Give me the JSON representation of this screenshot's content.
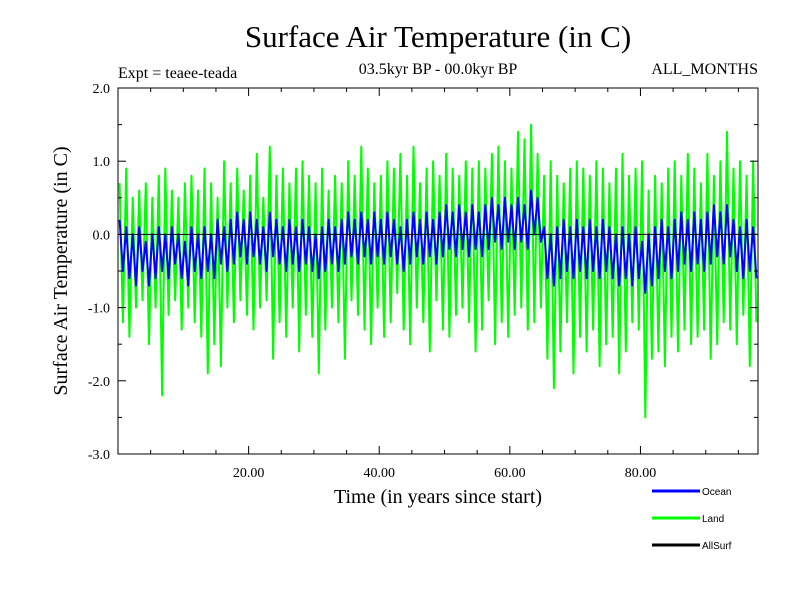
{
  "chart_data": {
    "type": "line",
    "title": "Surface Air Temperature (in C)",
    "subtitle_left": "Expt = teaee-teada",
    "subtitle_center": "03.5kyr BP - 00.0kyr BP",
    "subtitle_right": "ALL_MONTHS",
    "xlabel": "Time (in years since start)",
    "ylabel": "Surface Air Temperature (in C)",
    "xlim": [
      0,
      98
    ],
    "ylim": [
      -3.0,
      2.0
    ],
    "x_ticks": [
      20,
      40,
      60,
      80
    ],
    "x_tick_labels": [
      "20.00",
      "40.00",
      "60.00",
      "80.00"
    ],
    "y_ticks": [
      -3,
      -2,
      -1,
      0,
      1,
      2
    ],
    "y_tick_labels": [
      "-3.0",
      "-2.0",
      "-1.0",
      "0.0",
      "1.0",
      "2.0"
    ],
    "zero_line": true,
    "legend_position": "bottom-right",
    "series": [
      {
        "name": "Land",
        "color": "#00ff00",
        "x": [
          0.5,
          1.5,
          2.5,
          3.5,
          4.5,
          5.5,
          6.5,
          7.5,
          8.5,
          9.5,
          10.5,
          11.5,
          12.5,
          13.5,
          14.5,
          15.5,
          16.5,
          17.5,
          18.5,
          19.5,
          20.5,
          21.5,
          22.5,
          23.5,
          24.5,
          25.5,
          26.5,
          27.5,
          28.5,
          29.5,
          30.5,
          31.5,
          32.5,
          33.5,
          34.5,
          35.5,
          36.5,
          37.5,
          38.5,
          39.5,
          40.5,
          41.5,
          42.5,
          43.5,
          44.5,
          45.5,
          46.5,
          47.5,
          48.5,
          49.5,
          50.5,
          51.5,
          52.5,
          53.5,
          54.5,
          55.5,
          56.5,
          57.5,
          58.5,
          59.5,
          60.5,
          61.5,
          62.5,
          63.5,
          64.5,
          65.5,
          66.5,
          67.5,
          68.5,
          69.5,
          70.5,
          71.5,
          72.5,
          73.5,
          74.5,
          75.5,
          76.5,
          77.5,
          78.5,
          79.5,
          80.5,
          81.5,
          82.5,
          83.5,
          84.5,
          85.5,
          86.5,
          87.5,
          88.5,
          89.5,
          90.5,
          91.5,
          92.5,
          93.5,
          94.5,
          95.5,
          96.5,
          97.5
        ],
        "max": [
          0.7,
          0.9,
          0.5,
          0.6,
          0.7,
          0.5,
          0.8,
          0.9,
          0.6,
          0.5,
          0.7,
          0.8,
          0.6,
          0.9,
          0.7,
          0.5,
          1.0,
          0.7,
          0.9,
          0.6,
          0.8,
          1.1,
          0.5,
          1.2,
          0.8,
          0.9,
          0.7,
          0.9,
          1.0,
          0.8,
          0.7,
          0.9,
          0.6,
          0.8,
          0.7,
          1.0,
          0.8,
          1.2,
          0.9,
          0.7,
          0.8,
          1.0,
          0.9,
          1.1,
          0.8,
          1.2,
          0.7,
          0.9,
          1.0,
          0.8,
          1.1,
          0.9,
          0.8,
          1.0,
          0.9,
          1.0,
          0.9,
          1.1,
          1.2,
          1.0,
          0.9,
          1.4,
          1.3,
          1.5,
          1.1,
          0.8,
          1.0,
          0.8,
          0.7,
          0.9,
          1.0,
          0.9,
          0.8,
          1.0,
          0.9,
          0.7,
          0.9,
          1.1,
          0.8,
          0.9,
          1.0,
          0.6,
          0.8,
          0.7,
          0.9,
          1.0,
          0.8,
          1.1,
          0.9,
          0.7,
          1.1,
          0.8,
          1.0,
          1.4,
          0.9,
          1.0,
          0.8,
          1.0
        ],
        "min": [
          -1.2,
          -1.4,
          -1.0,
          -0.9,
          -1.5,
          -1.0,
          -2.2,
          -1.1,
          -0.9,
          -1.3,
          -1.0,
          -1.2,
          -1.4,
          -1.9,
          -1.5,
          -1.8,
          -1.0,
          -1.2,
          -0.9,
          -1.1,
          -1.3,
          -1.0,
          -0.9,
          -1.7,
          -1.2,
          -1.4,
          -1.0,
          -1.6,
          -1.1,
          -1.4,
          -1.9,
          -1.3,
          -1.0,
          -1.2,
          -1.7,
          -0.9,
          -1.1,
          -1.3,
          -1.5,
          -1.0,
          -1.4,
          -1.2,
          -0.8,
          -1.3,
          -1.5,
          -1.0,
          -1.2,
          -1.6,
          -0.9,
          -1.3,
          -1.4,
          -1.1,
          -1.0,
          -1.2,
          -1.6,
          -1.3,
          -0.9,
          -1.5,
          -1.2,
          -1.4,
          -1.1,
          -1.0,
          -1.3,
          -1.2,
          -1.0,
          -1.7,
          -2.1,
          -1.6,
          -1.2,
          -1.9,
          -1.4,
          -1.6,
          -1.3,
          -1.8,
          -1.5,
          -1.4,
          -1.9,
          -1.6,
          -1.2,
          -1.3,
          -2.5,
          -1.7,
          -1.6,
          -1.8,
          -1.4,
          -1.6,
          -1.3,
          -1.5,
          -1.4,
          -1.3,
          -1.7,
          -1.5,
          -1.2,
          -1.3,
          -1.5,
          -1.1,
          -1.8,
          -1.2
        ]
      },
      {
        "name": "Ocean",
        "color": "#0000ff",
        "x": [
          0.5,
          1.5,
          2.5,
          3.5,
          4.5,
          5.5,
          6.5,
          7.5,
          8.5,
          9.5,
          10.5,
          11.5,
          12.5,
          13.5,
          14.5,
          15.5,
          16.5,
          17.5,
          18.5,
          19.5,
          20.5,
          21.5,
          22.5,
          23.5,
          24.5,
          25.5,
          26.5,
          27.5,
          28.5,
          29.5,
          30.5,
          31.5,
          32.5,
          33.5,
          34.5,
          35.5,
          36.5,
          37.5,
          38.5,
          39.5,
          40.5,
          41.5,
          42.5,
          43.5,
          44.5,
          45.5,
          46.5,
          47.5,
          48.5,
          49.5,
          50.5,
          51.5,
          52.5,
          53.5,
          54.5,
          55.5,
          56.5,
          57.5,
          58.5,
          59.5,
          60.5,
          61.5,
          62.5,
          63.5,
          64.5,
          65.5,
          66.5,
          67.5,
          68.5,
          69.5,
          70.5,
          71.5,
          72.5,
          73.5,
          74.5,
          75.5,
          76.5,
          77.5,
          78.5,
          79.5,
          80.5,
          81.5,
          82.5,
          83.5,
          84.5,
          85.5,
          86.5,
          87.5,
          88.5,
          89.5,
          90.5,
          91.5,
          92.5,
          93.5,
          94.5,
          95.5,
          96.5,
          97.5
        ],
        "max": [
          0.2,
          0.1,
          0.0,
          0.1,
          -0.1,
          0.0,
          0.1,
          0.0,
          0.1,
          0.0,
          -0.1,
          0.1,
          0.0,
          0.1,
          0.0,
          0.2,
          0.1,
          0.2,
          0.3,
          0.2,
          0.3,
          0.2,
          0.1,
          0.3,
          0.2,
          0.1,
          0.2,
          0.1,
          0.2,
          0.1,
          0.0,
          0.1,
          0.2,
          0.1,
          0.2,
          0.3,
          0.2,
          0.3,
          0.2,
          0.3,
          0.2,
          0.3,
          0.2,
          0.1,
          0.2,
          0.3,
          0.2,
          0.3,
          0.2,
          0.3,
          0.4,
          0.3,
          0.4,
          0.3,
          0.4,
          0.3,
          0.4,
          0.5,
          0.4,
          0.5,
          0.4,
          0.5,
          0.4,
          0.6,
          0.5,
          0.1,
          0.0,
          0.1,
          0.2,
          0.1,
          0.2,
          0.1,
          0.2,
          0.1,
          0.2,
          0.1,
          0.0,
          0.1,
          0.0,
          0.1,
          -0.1,
          0.0,
          0.1,
          0.2,
          0.1,
          0.2,
          0.3,
          0.2,
          0.3,
          0.2,
          0.3,
          0.4,
          0.3,
          0.4,
          0.2,
          0.1,
          0.2,
          0.1
        ],
        "min": [
          -0.5,
          -0.6,
          -0.7,
          -0.5,
          -0.7,
          -0.6,
          -0.5,
          -0.6,
          -0.4,
          -0.6,
          -0.7,
          -0.5,
          -0.6,
          -0.5,
          -0.6,
          -0.4,
          -0.5,
          -0.4,
          -0.3,
          -0.4,
          -0.3,
          -0.4,
          -0.5,
          -0.3,
          -0.4,
          -0.5,
          -0.4,
          -0.5,
          -0.4,
          -0.5,
          -0.6,
          -0.5,
          -0.4,
          -0.5,
          -0.4,
          -0.3,
          -0.4,
          -0.3,
          -0.4,
          -0.3,
          -0.4,
          -0.3,
          -0.4,
          -0.5,
          -0.4,
          -0.3,
          -0.4,
          -0.3,
          -0.4,
          -0.3,
          -0.2,
          -0.3,
          -0.2,
          -0.3,
          -0.2,
          -0.3,
          -0.2,
          -0.1,
          -0.2,
          -0.1,
          -0.2,
          -0.1,
          -0.2,
          0.0,
          -0.1,
          -0.6,
          -0.7,
          -0.6,
          -0.5,
          -0.6,
          -0.5,
          -0.6,
          -0.5,
          -0.6,
          -0.5,
          -0.6,
          -0.7,
          -0.6,
          -0.7,
          -0.6,
          -0.8,
          -0.7,
          -0.6,
          -0.5,
          -0.6,
          -0.5,
          -0.4,
          -0.5,
          -0.4,
          -0.5,
          -0.4,
          -0.3,
          -0.4,
          -0.3,
          -0.5,
          -0.6,
          -0.5,
          -0.6
        ]
      },
      {
        "name": "AllSurf",
        "color": "#000000",
        "x": [],
        "max": [],
        "min": []
      }
    ],
    "legend": [
      {
        "name": "Ocean",
        "color": "#0000ff"
      },
      {
        "name": "Land",
        "color": "#00ff00"
      },
      {
        "name": "AllSurf",
        "color": "#000000"
      }
    ]
  }
}
